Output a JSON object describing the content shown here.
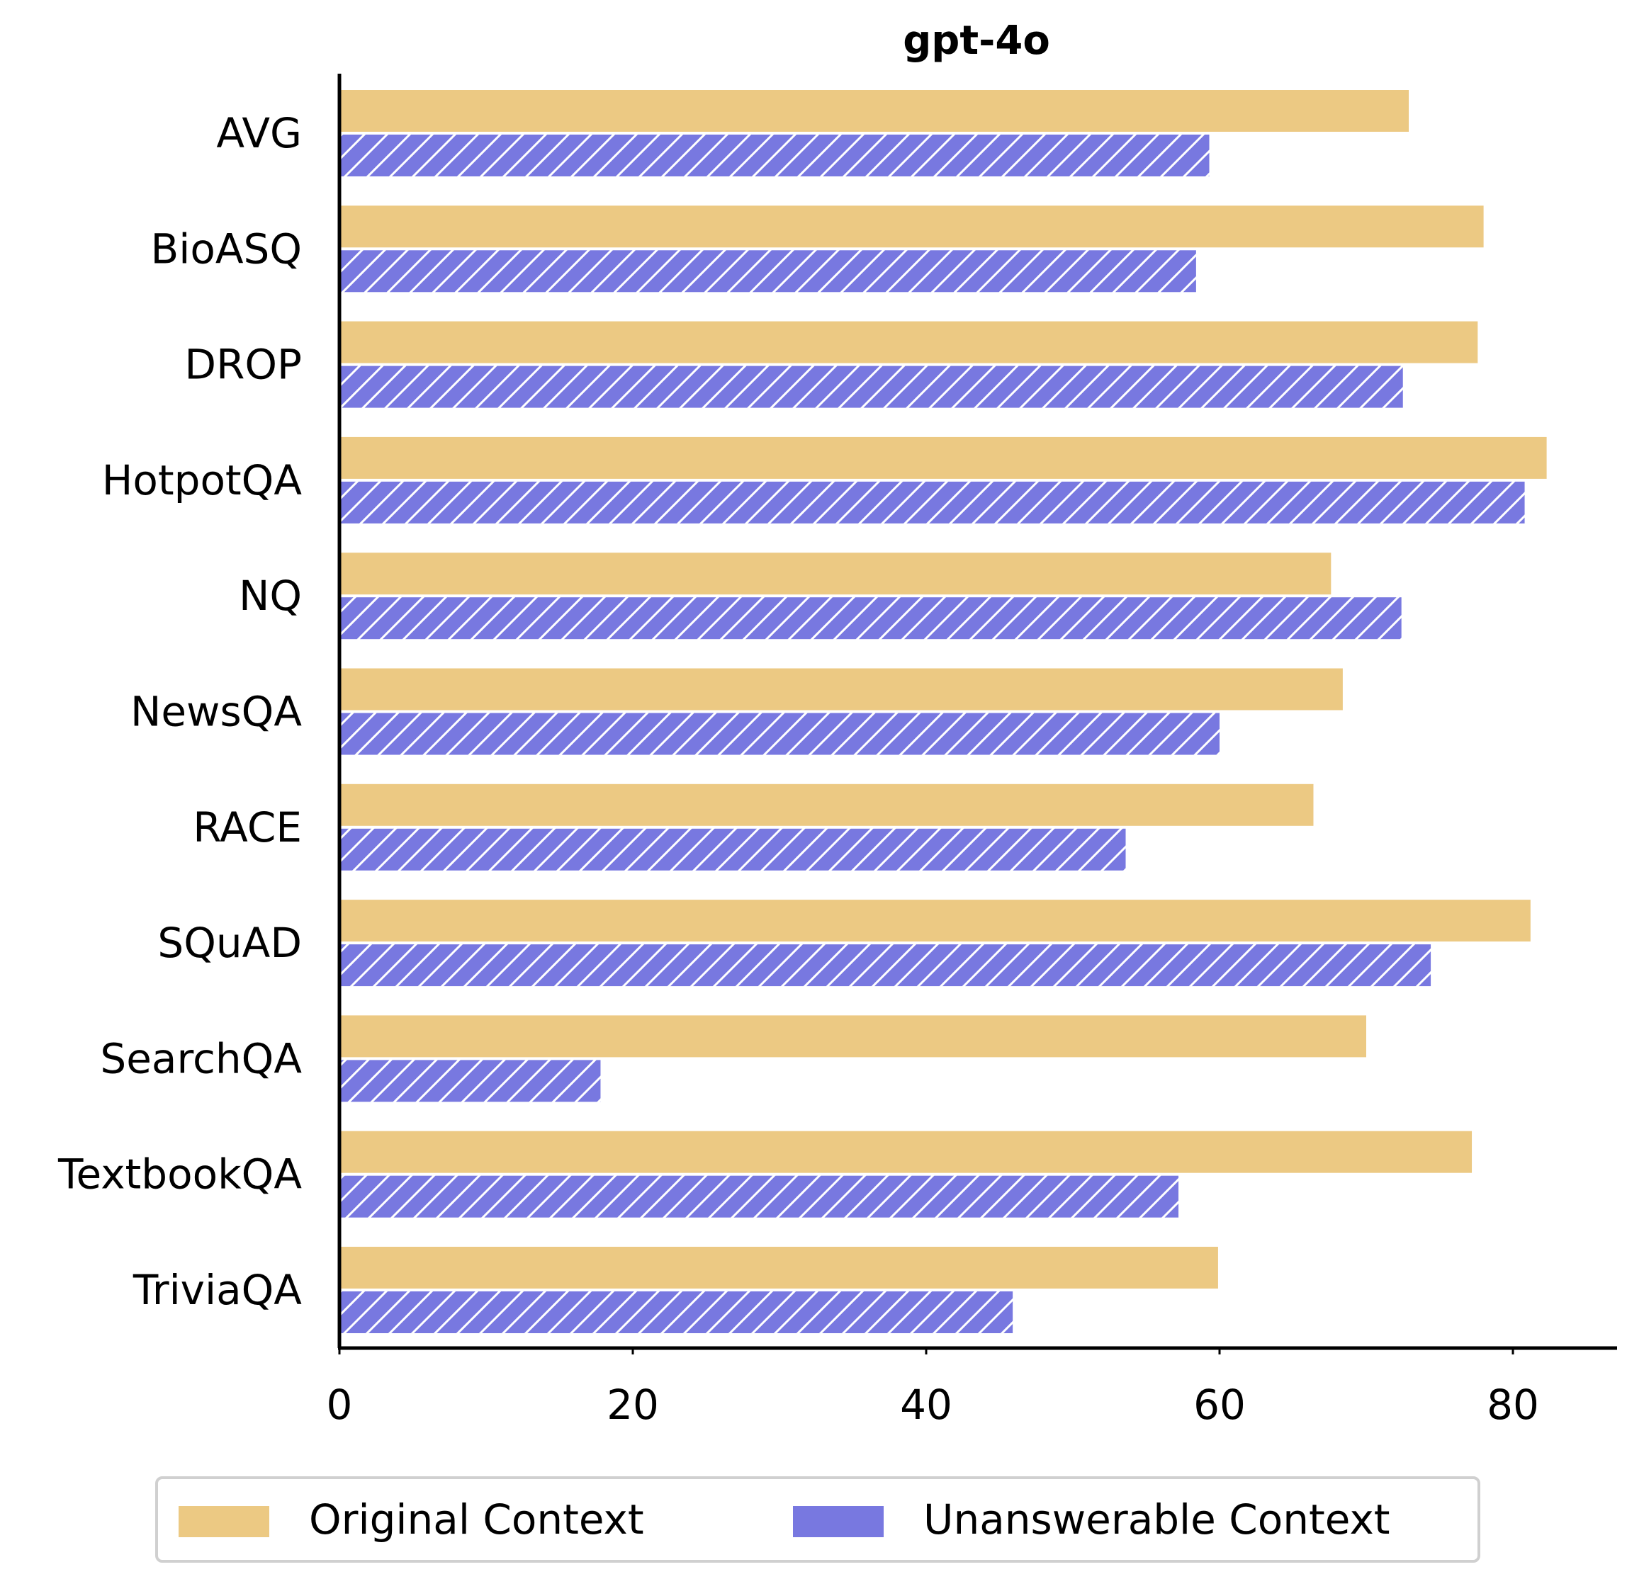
{
  "chart_data": {
    "type": "bar",
    "orientation": "horizontal",
    "title": "gpt-4o",
    "xlabel": "",
    "ylabel": "",
    "categories": [
      "AVG",
      "BioASQ",
      "DROP",
      "HotpotQA",
      "NQ",
      "NewsQA",
      "RACE",
      "SQuAD",
      "SearchQA",
      "TextbookQA",
      "TriviaQA"
    ],
    "series": [
      {
        "name": "Original Context",
        "color": "#ECC983",
        "pattern": "solid",
        "values": [
          72.9,
          78.0,
          77.6,
          82.3,
          67.6,
          68.4,
          66.4,
          81.2,
          70.0,
          77.2,
          59.9
        ]
      },
      {
        "name": "Unanswerable Context",
        "color": "#7878E0",
        "pattern": "diagonal-hatch",
        "values": [
          59.3,
          58.4,
          72.5,
          80.8,
          72.4,
          60.0,
          53.6,
          74.4,
          17.8,
          57.2,
          45.9
        ]
      }
    ],
    "xlim": [
      0,
      87
    ],
    "xticks": [
      0,
      20,
      40,
      60,
      80
    ],
    "grid": false,
    "legend": {
      "position": "bottom-center",
      "columns": 2
    }
  }
}
